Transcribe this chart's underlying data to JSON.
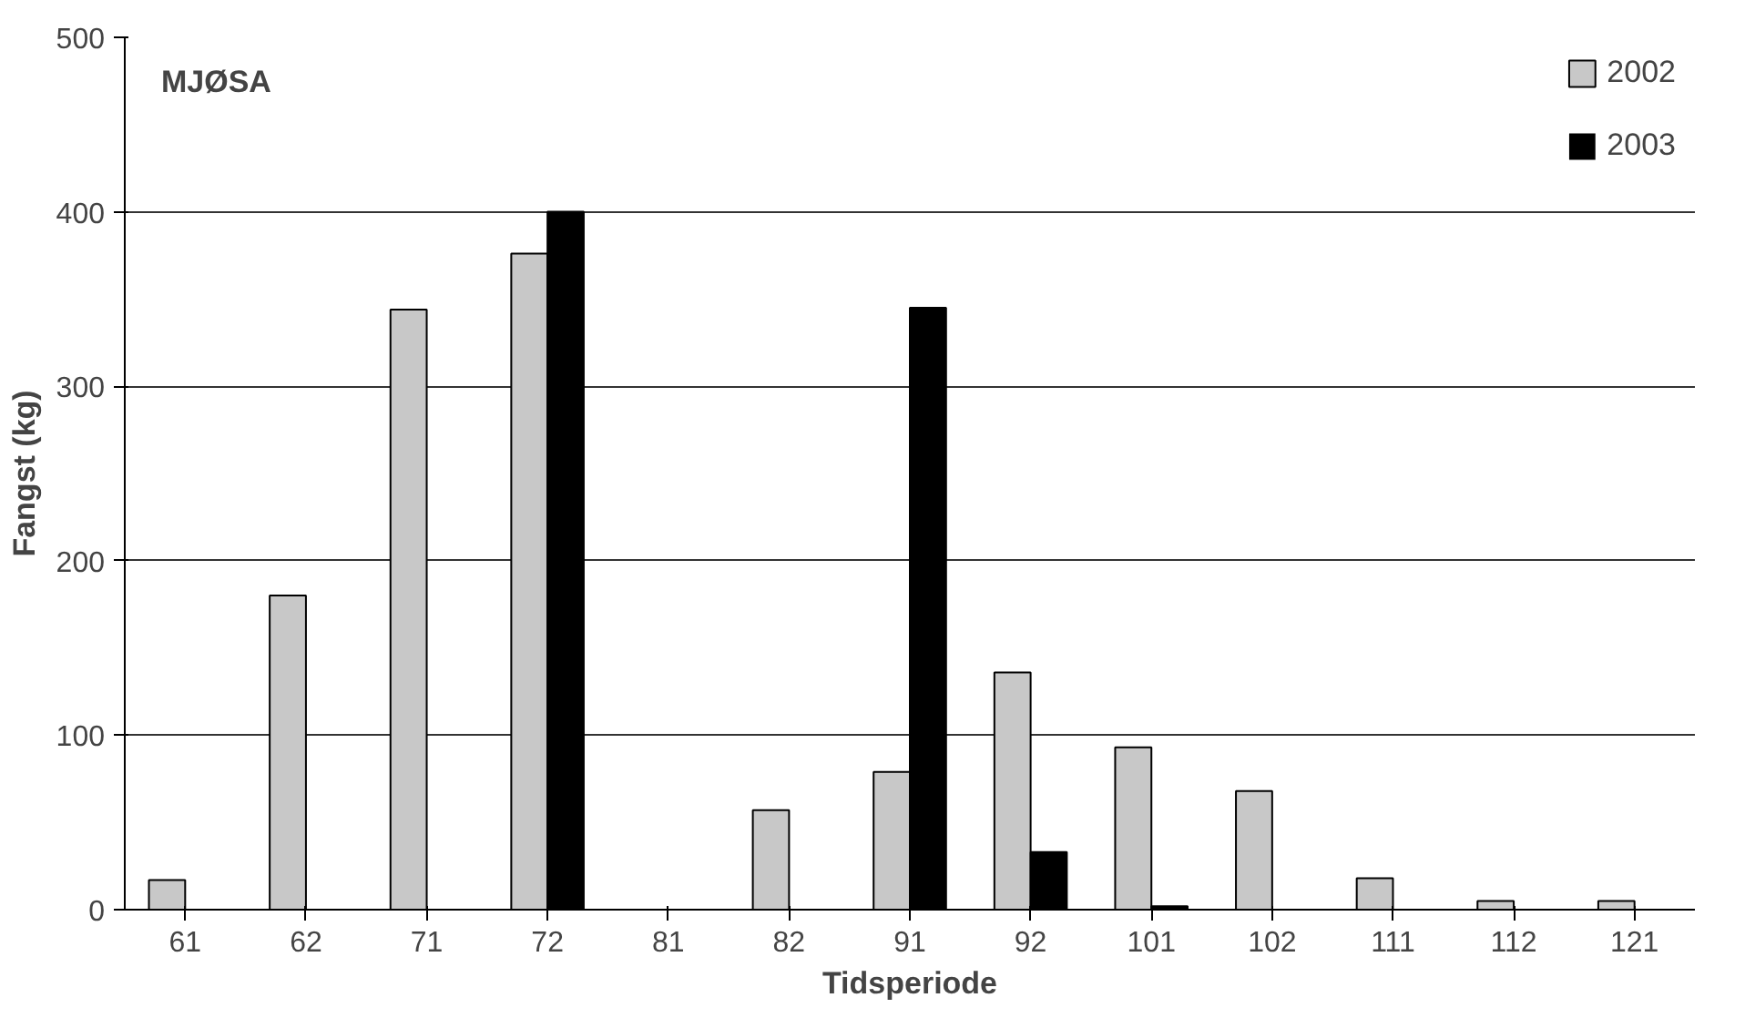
{
  "chart_data": {
    "type": "bar",
    "title": "MJØSA",
    "xlabel": "Tidsperiode",
    "ylabel": "Fangst (kg)",
    "categories": [
      "61",
      "62",
      "71",
      "72",
      "81",
      "82",
      "91",
      "92",
      "101",
      "102",
      "111",
      "112",
      "121"
    ],
    "series": [
      {
        "name": "2002",
        "color": "#c8c8c8",
        "values": [
          17,
          180,
          344,
          376,
          0,
          57,
          79,
          136,
          93,
          68,
          18,
          5,
          5
        ]
      },
      {
        "name": "2003",
        "color": "#000000",
        "values": [
          0,
          0,
          0,
          400,
          0,
          0,
          345,
          33,
          2,
          0,
          0,
          0,
          0
        ]
      }
    ],
    "ylim": [
      0,
      500
    ],
    "yticks": [
      0,
      100,
      200,
      300,
      400,
      500
    ],
    "grid": "y",
    "legend": "top right"
  }
}
